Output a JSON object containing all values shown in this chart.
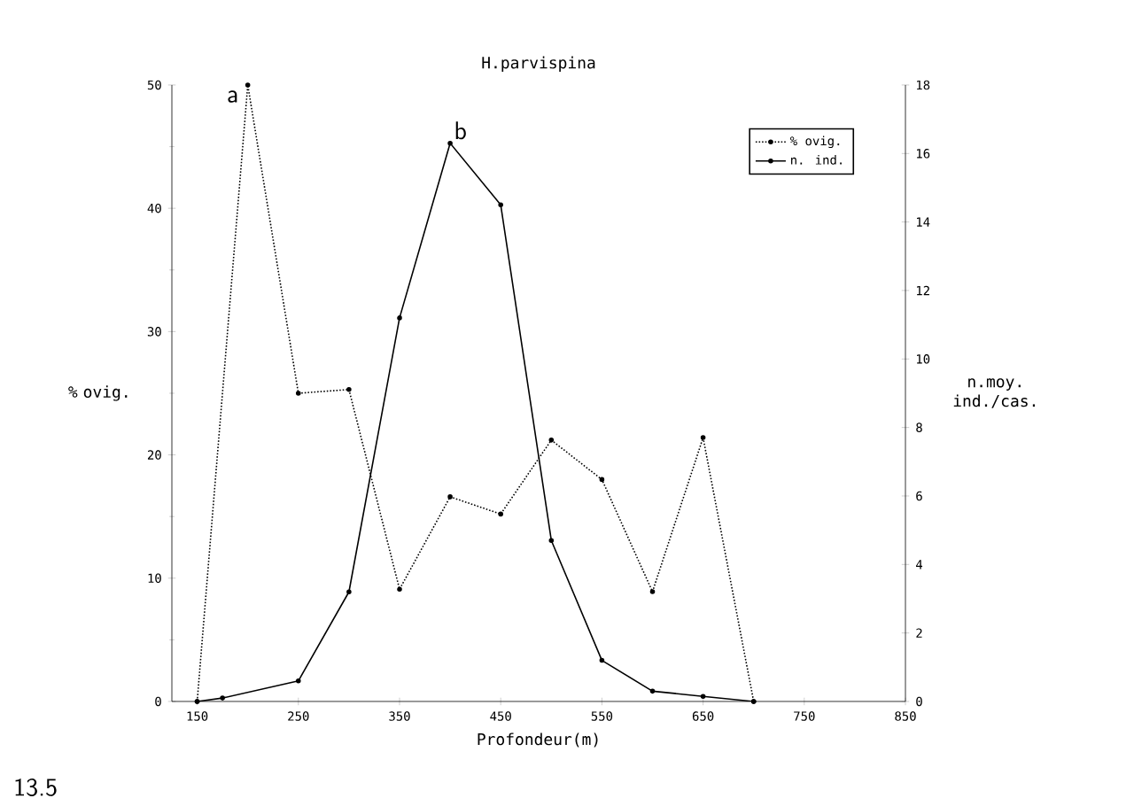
{
  "chart_data": {
    "type": "line",
    "title": "H.parvispina",
    "xlabel": "Profondeur(m)",
    "ylabel": "% ovig.",
    "y2label": "n.moy. ind./cas.",
    "series": [
      {
        "name": "% ovig.",
        "color": "#000000",
        "line_style": "dotted",
        "marker": "circle",
        "x": [
          150,
          200,
          250,
          300,
          350,
          400,
          450,
          500,
          550,
          600,
          650,
          700
        ],
        "values": [
          0,
          50,
          25,
          25.3,
          9.1,
          16.6,
          15.2,
          21.2,
          18.0,
          8.9,
          21.4,
          0
        ]
      },
      {
        "name": "n. ind.",
        "color": "#000000",
        "line_style": "solid",
        "marker": "circle",
        "axis": "y2",
        "x": [
          150,
          175,
          250,
          300,
          350,
          400,
          450,
          500,
          550,
          600,
          650,
          700
        ],
        "values": [
          0,
          0.1,
          0.6,
          3.2,
          11.2,
          16.3,
          14.5,
          4.7,
          1.2,
          0.3,
          0.15,
          0
        ]
      }
    ],
    "xlim": [
      125,
      850
    ],
    "xticks": [
      150,
      250,
      350,
      450,
      550,
      650,
      750,
      850
    ],
    "ylim": [
      0,
      50
    ],
    "yticks": [
      0,
      10,
      20,
      30,
      40,
      50
    ],
    "y2lim": [
      0,
      18
    ],
    "y2ticks": [
      0,
      2,
      4,
      6,
      8,
      10,
      12,
      14,
      16,
      18
    ],
    "legend": "top right",
    "grid": false,
    "annotations": [
      {
        "text": "a",
        "x": 200,
        "y": 50
      },
      "b",
      "13.5"
    ]
  }
}
